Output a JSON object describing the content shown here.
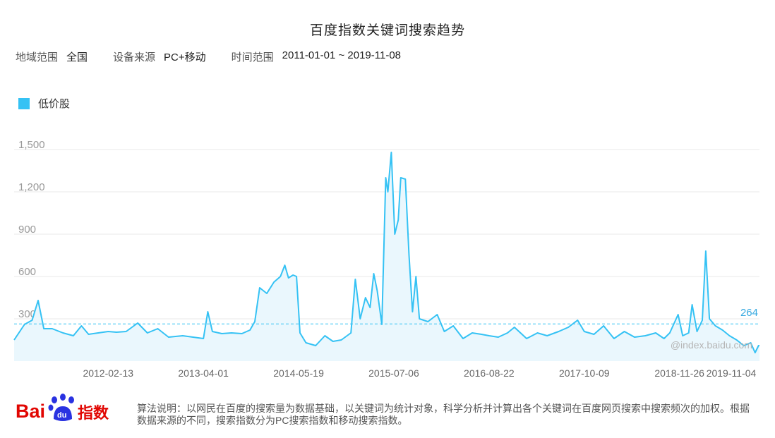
{
  "title": "百度指数关键词搜索趋势",
  "meta": {
    "region_label": "地域范围",
    "region_value": "全国",
    "device_label": "设备来源",
    "device_value": "PC+移动",
    "time_label": "时间范围",
    "time_value": "2011-01-01 ~ 2019-11-08"
  },
  "legend_label": "低价股",
  "watermark": "@index.baidu.com",
  "footer": {
    "logo_text_bai": "Bai",
    "logo_text_du": "du",
    "logo_text_index": "指数",
    "description": "算法说明：以网民在百度的搜索量为数据基础，以关键词为统计对象，科学分析并计算出各个关键词在百度网页搜索中搜索频次的加权。根据数据来源的不同，搜索指数分为PC搜索指数和移动搜索指数。"
  },
  "colors": {
    "line": "#35c2f4",
    "fill": "#eaf7fd",
    "grid": "#e8e8e8",
    "tick_text": "#999999",
    "avg_label": "#35a8e0",
    "logo_red": "#e10602",
    "logo_blue": "#2932e1"
  },
  "chart_data": {
    "type": "area",
    "ylim": [
      0,
      1500
    ],
    "yticks": [
      300,
      600,
      900,
      1200,
      1500
    ],
    "ytick_labels": [
      "300",
      "600",
      "900",
      "1,200",
      "1,500"
    ],
    "xlim": [
      "2011-01-01",
      "2019-11-08"
    ],
    "xticks": [
      "2012-02-13",
      "2013-04-01",
      "2014-05-19",
      "2015-07-06",
      "2016-08-22",
      "2017-10-09",
      "2018-11-26",
      "2019-11-04"
    ],
    "average": 264,
    "average_label": "264",
    "grid": true,
    "series": [
      {
        "name": "低价股",
        "points": [
          [
            "2011-01-01",
            150
          ],
          [
            "2011-02-15",
            260
          ],
          [
            "2011-03-20",
            290
          ],
          [
            "2011-04-15",
            430
          ],
          [
            "2011-05-10",
            230
          ],
          [
            "2011-06-15",
            230
          ],
          [
            "2011-08-01",
            200
          ],
          [
            "2011-09-15",
            180
          ],
          [
            "2011-10-20",
            250
          ],
          [
            "2011-11-20",
            190
          ],
          [
            "2012-01-01",
            200
          ],
          [
            "2012-02-13",
            210
          ],
          [
            "2012-03-20",
            205
          ],
          [
            "2012-05-01",
            210
          ],
          [
            "2012-06-20",
            270
          ],
          [
            "2012-08-01",
            200
          ],
          [
            "2012-09-15",
            230
          ],
          [
            "2012-11-01",
            170
          ],
          [
            "2013-01-01",
            180
          ],
          [
            "2013-02-15",
            170
          ],
          [
            "2013-04-01",
            160
          ],
          [
            "2013-04-20",
            350
          ],
          [
            "2013-05-10",
            210
          ],
          [
            "2013-06-20",
            195
          ],
          [
            "2013-08-01",
            200
          ],
          [
            "2013-09-15",
            195
          ],
          [
            "2013-10-20",
            220
          ],
          [
            "2013-11-10",
            280
          ],
          [
            "2013-12-01",
            520
          ],
          [
            "2014-01-01",
            480
          ],
          [
            "2014-02-01",
            560
          ],
          [
            "2014-03-01",
            600
          ],
          [
            "2014-03-20",
            680
          ],
          [
            "2014-04-05",
            590
          ],
          [
            "2014-04-25",
            610
          ],
          [
            "2014-05-10",
            600
          ],
          [
            "2014-05-25",
            200
          ],
          [
            "2014-06-20",
            130
          ],
          [
            "2014-08-01",
            110
          ],
          [
            "2014-09-10",
            180
          ],
          [
            "2014-10-15",
            140
          ],
          [
            "2014-11-20",
            150
          ],
          [
            "2015-01-01",
            200
          ],
          [
            "2015-01-20",
            580
          ],
          [
            "2015-02-10",
            300
          ],
          [
            "2015-03-05",
            450
          ],
          [
            "2015-03-25",
            380
          ],
          [
            "2015-04-10",
            620
          ],
          [
            "2015-04-25",
            500
          ],
          [
            "2015-05-15",
            260
          ],
          [
            "2015-06-01",
            1300
          ],
          [
            "2015-06-10",
            1200
          ],
          [
            "2015-06-25",
            1480
          ],
          [
            "2015-07-10",
            900
          ],
          [
            "2015-07-25",
            1000
          ],
          [
            "2015-08-05",
            1300
          ],
          [
            "2015-08-25",
            1290
          ],
          [
            "2015-09-10",
            750
          ],
          [
            "2015-09-25",
            350
          ],
          [
            "2015-10-10",
            600
          ],
          [
            "2015-10-25",
            300
          ],
          [
            "2015-12-01",
            280
          ],
          [
            "2016-01-10",
            330
          ],
          [
            "2016-02-10",
            210
          ],
          [
            "2016-03-20",
            250
          ],
          [
            "2016-05-01",
            160
          ],
          [
            "2016-06-10",
            200
          ],
          [
            "2016-07-20",
            190
          ],
          [
            "2016-08-22",
            180
          ],
          [
            "2016-10-01",
            170
          ],
          [
            "2016-11-10",
            200
          ],
          [
            "2016-12-10",
            240
          ],
          [
            "2017-02-01",
            160
          ],
          [
            "2017-03-20",
            200
          ],
          [
            "2017-05-01",
            180
          ],
          [
            "2017-06-20",
            210
          ],
          [
            "2017-08-01",
            240
          ],
          [
            "2017-09-10",
            290
          ],
          [
            "2017-10-09",
            210
          ],
          [
            "2017-11-20",
            190
          ],
          [
            "2018-01-01",
            250
          ],
          [
            "2018-02-15",
            160
          ],
          [
            "2018-04-01",
            210
          ],
          [
            "2018-05-15",
            170
          ],
          [
            "2018-07-01",
            180
          ],
          [
            "2018-08-15",
            200
          ],
          [
            "2018-09-20",
            160
          ],
          [
            "2018-10-15",
            200
          ],
          [
            "2018-11-20",
            330
          ],
          [
            "2018-12-10",
            180
          ],
          [
            "2019-01-05",
            200
          ],
          [
            "2019-01-20",
            400
          ],
          [
            "2019-02-10",
            210
          ],
          [
            "2019-03-05",
            290
          ],
          [
            "2019-03-20",
            780
          ],
          [
            "2019-04-05",
            300
          ],
          [
            "2019-05-01",
            250
          ],
          [
            "2019-06-01",
            220
          ],
          [
            "2019-07-01",
            180
          ],
          [
            "2019-08-01",
            150
          ],
          [
            "2019-09-01",
            110
          ],
          [
            "2019-10-01",
            130
          ],
          [
            "2019-10-20",
            60
          ],
          [
            "2019-11-04",
            110
          ],
          [
            "2019-11-08",
            110
          ]
        ]
      }
    ]
  }
}
